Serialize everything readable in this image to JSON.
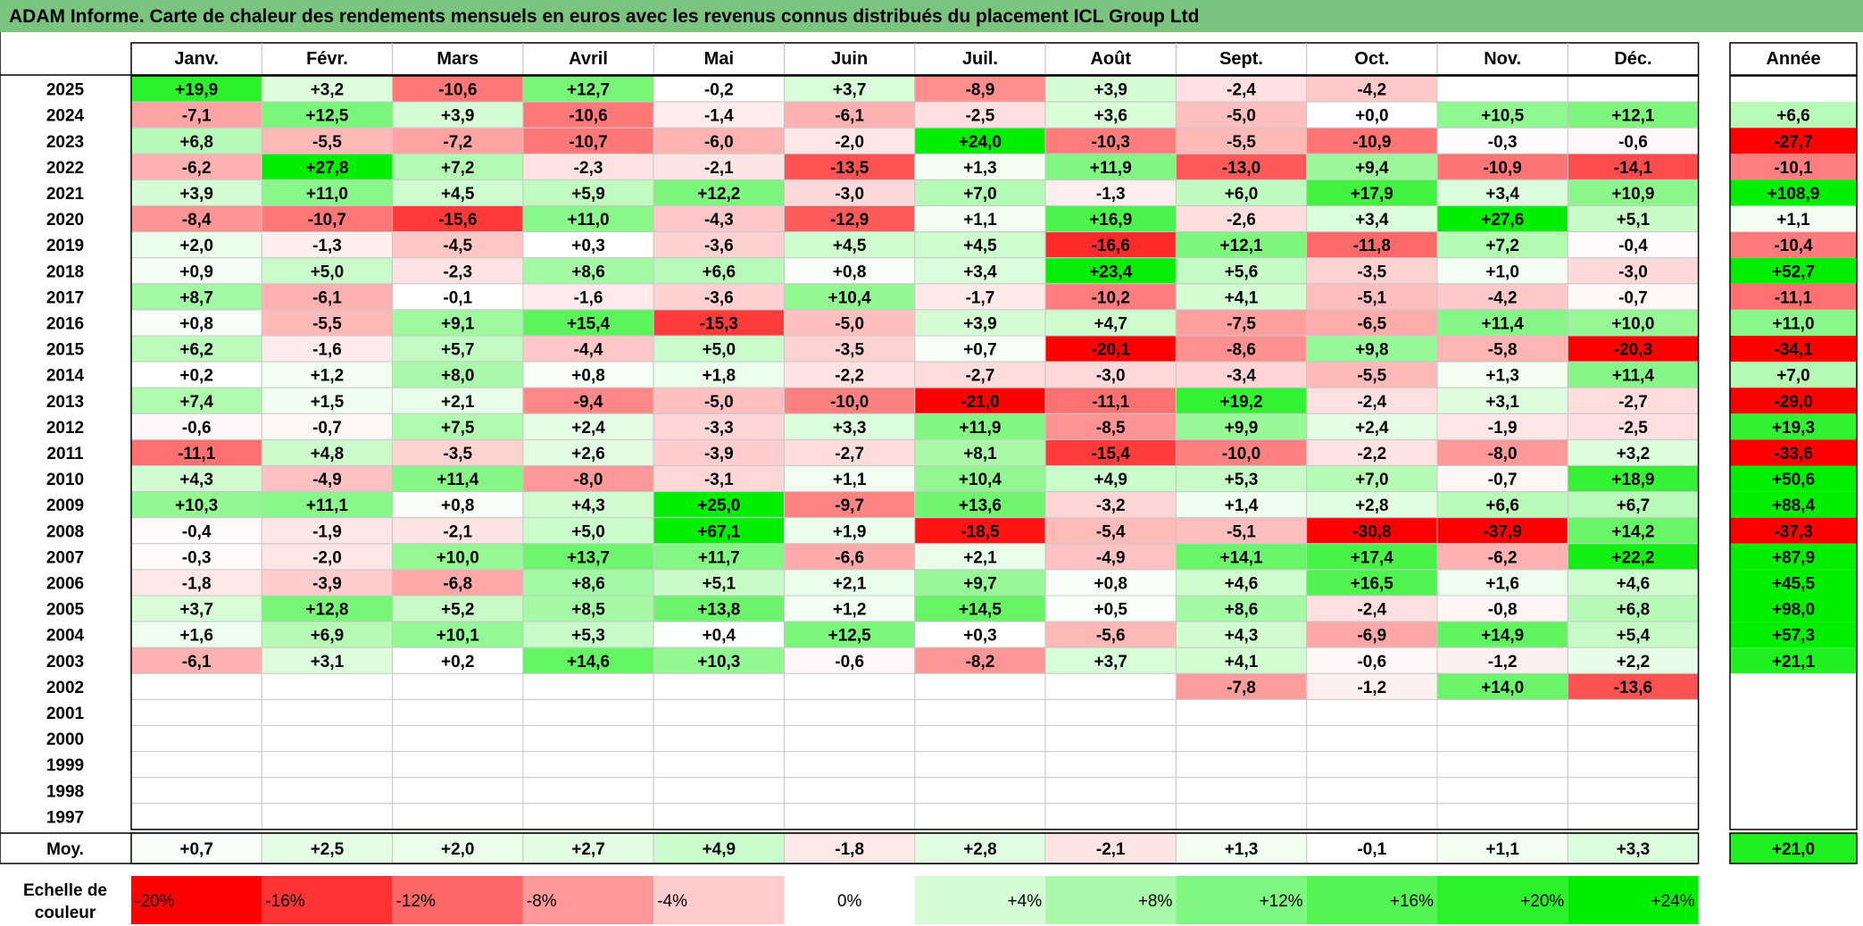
{
  "title": "ADAM Informe. Carte de chaleur des rendements mensuels en euros avec les revenus connus distribués du placement ICL Group Ltd",
  "chart_data": {
    "type": "heatmap",
    "title": "ADAM Informe. Carte de chaleur des rendements mensuels en euros avec les revenus connus distribués du placement ICL Group Ltd",
    "months": [
      "Janv.",
      "Févr.",
      "Mars",
      "Avril",
      "Mai",
      "Juin",
      "Juil.",
      "Août",
      "Sept.",
      "Oct.",
      "Nov.",
      "Déc."
    ],
    "year_header": "Année",
    "rows": [
      {
        "year": "2025",
        "values": [
          "+19,9",
          "+3,2",
          "-10,6",
          "+12,7",
          "-0,2",
          "+3,7",
          "-8,9",
          "+3,9",
          "-2,4",
          "-4,2",
          "",
          ""
        ],
        "annual": ""
      },
      {
        "year": "2024",
        "values": [
          "-7,1",
          "+12,5",
          "+3,9",
          "-10,6",
          "-1,4",
          "-6,1",
          "-2,5",
          "+3,6",
          "-5,0",
          "+0,0",
          "+10,5",
          "+12,1"
        ],
        "annual": "+6,6"
      },
      {
        "year": "2023",
        "values": [
          "+6,8",
          "-5,5",
          "-7,2",
          "-10,7",
          "-6,0",
          "-2,0",
          "+24,0",
          "-10,3",
          "-5,5",
          "-10,9",
          "-0,3",
          "-0,6"
        ],
        "annual": "-27,7"
      },
      {
        "year": "2022",
        "values": [
          "-6,2",
          "+27,8",
          "+7,2",
          "-2,3",
          "-2,1",
          "-13,5",
          "+1,3",
          "+11,9",
          "-13,0",
          "+9,4",
          "-10,9",
          "-14,1"
        ],
        "annual": "-10,1"
      },
      {
        "year": "2021",
        "values": [
          "+3,9",
          "+11,0",
          "+4,5",
          "+5,9",
          "+12,2",
          "-3,0",
          "+7,0",
          "-1,3",
          "+6,0",
          "+17,9",
          "+3,4",
          "+10,9"
        ],
        "annual": "+108,9"
      },
      {
        "year": "2020",
        "values": [
          "-8,4",
          "-10,7",
          "-15,6",
          "+11,0",
          "-4,3",
          "-12,9",
          "+1,1",
          "+16,9",
          "-2,6",
          "+3,4",
          "+27,6",
          "+5,1"
        ],
        "annual": "+1,1"
      },
      {
        "year": "2019",
        "values": [
          "+2,0",
          "-1,3",
          "-4,5",
          "+0,3",
          "-3,6",
          "+4,5",
          "+4,5",
          "-16,6",
          "+12,1",
          "-11,8",
          "+7,2",
          "-0,4"
        ],
        "annual": "-10,4"
      },
      {
        "year": "2018",
        "values": [
          "+0,9",
          "+5,0",
          "-2,3",
          "+8,6",
          "+6,6",
          "+0,8",
          "+3,4",
          "+23,4",
          "+5,6",
          "-3,5",
          "+1,0",
          "-3,0"
        ],
        "annual": "+52,7"
      },
      {
        "year": "2017",
        "values": [
          "+8,7",
          "-6,1",
          "-0,1",
          "-1,6",
          "-3,6",
          "+10,4",
          "-1,7",
          "-10,2",
          "+4,1",
          "-5,1",
          "-4,2",
          "-0,7"
        ],
        "annual": "-11,1"
      },
      {
        "year": "2016",
        "values": [
          "+0,8",
          "-5,5",
          "+9,1",
          "+15,4",
          "-15,3",
          "-5,0",
          "+3,9",
          "+4,7",
          "-7,5",
          "-6,5",
          "+11,4",
          "+10,0"
        ],
        "annual": "+11,0"
      },
      {
        "year": "2015",
        "values": [
          "+6,2",
          "-1,6",
          "+5,7",
          "-4,4",
          "+5,0",
          "-3,5",
          "+0,7",
          "-20,1",
          "-8,6",
          "+9,8",
          "-5,8",
          "-20,3"
        ],
        "annual": "-34,1"
      },
      {
        "year": "2014",
        "values": [
          "+0,2",
          "+1,2",
          "+8,0",
          "+0,8",
          "+1,8",
          "-2,2",
          "-2,7",
          "-3,0",
          "-3,4",
          "-5,5",
          "+1,3",
          "+11,4"
        ],
        "annual": "+7,0"
      },
      {
        "year": "2013",
        "values": [
          "+7,4",
          "+1,5",
          "+2,1",
          "-9,4",
          "-5,0",
          "-10,0",
          "-21,0",
          "-11,1",
          "+19,2",
          "-2,4",
          "+3,1",
          "-2,7"
        ],
        "annual": "-29,0"
      },
      {
        "year": "2012",
        "values": [
          "-0,6",
          "-0,7",
          "+7,5",
          "+2,4",
          "-3,3",
          "+3,3",
          "+11,9",
          "-8,5",
          "+9,9",
          "+2,4",
          "-1,9",
          "-2,5"
        ],
        "annual": "+19,3"
      },
      {
        "year": "2011",
        "values": [
          "-11,1",
          "+4,8",
          "-3,5",
          "+2,6",
          "-3,9",
          "-2,7",
          "+8,1",
          "-15,4",
          "-10,0",
          "-2,2",
          "-8,0",
          "+3,2"
        ],
        "annual": "-33,6"
      },
      {
        "year": "2010",
        "values": [
          "+4,3",
          "-4,9",
          "+11,4",
          "-8,0",
          "-3,1",
          "+1,1",
          "+10,4",
          "+4,9",
          "+5,3",
          "+7,0",
          "-0,7",
          "+18,9"
        ],
        "annual": "+50,6"
      },
      {
        "year": "2009",
        "values": [
          "+10,3",
          "+11,1",
          "+0,8",
          "+4,3",
          "+25,0",
          "-9,7",
          "+13,6",
          "-3,2",
          "+1,4",
          "+2,8",
          "+6,6",
          "+6,7"
        ],
        "annual": "+88,4"
      },
      {
        "year": "2008",
        "values": [
          "-0,4",
          "-1,9",
          "-2,1",
          "+5,0",
          "+67,1",
          "+1,9",
          "-18,5",
          "-5,4",
          "-5,1",
          "-30,8",
          "-37,9",
          "+14,2"
        ],
        "annual": "-37,3"
      },
      {
        "year": "2007",
        "values": [
          "-0,3",
          "-2,0",
          "+10,0",
          "+13,7",
          "+11,7",
          "-6,6",
          "+2,1",
          "-4,9",
          "+14,1",
          "+17,4",
          "-6,2",
          "+22,2"
        ],
        "annual": "+87,9"
      },
      {
        "year": "2006",
        "values": [
          "-1,8",
          "-3,9",
          "-6,8",
          "+8,6",
          "+5,1",
          "+2,1",
          "+9,7",
          "+0,8",
          "+4,6",
          "+16,5",
          "+1,6",
          "+4,6"
        ],
        "annual": "+45,5"
      },
      {
        "year": "2005",
        "values": [
          "+3,7",
          "+12,8",
          "+5,2",
          "+8,5",
          "+13,8",
          "+1,2",
          "+14,5",
          "+0,5",
          "+8,6",
          "-2,4",
          "-0,8",
          "+6,8"
        ],
        "annual": "+98,0"
      },
      {
        "year": "2004",
        "values": [
          "+1,6",
          "+6,9",
          "+10,1",
          "+5,3",
          "+0,4",
          "+12,5",
          "+0,3",
          "-5,6",
          "+4,3",
          "-6,9",
          "+14,9",
          "+5,4"
        ],
        "annual": "+57,3"
      },
      {
        "year": "2003",
        "values": [
          "-6,1",
          "+3,1",
          "+0,2",
          "+14,6",
          "+10,3",
          "-0,6",
          "-8,2",
          "+3,7",
          "+4,1",
          "-0,6",
          "-1,2",
          "+2,2"
        ],
        "annual": "+21,1"
      },
      {
        "year": "2002",
        "values": [
          "",
          "",
          "",
          "",
          "",
          "",
          "",
          "",
          "-7,8",
          "-1,2",
          "+14,0",
          "-13,6"
        ],
        "annual": ""
      },
      {
        "year": "2001",
        "values": [
          "",
          "",
          "",
          "",
          "",
          "",
          "",
          "",
          "",
          "",
          "",
          ""
        ],
        "annual": ""
      },
      {
        "year": "2000",
        "values": [
          "",
          "",
          "",
          "",
          "",
          "",
          "",
          "",
          "",
          "",
          "",
          ""
        ],
        "annual": ""
      },
      {
        "year": "1999",
        "values": [
          "",
          "",
          "",
          "",
          "",
          "",
          "",
          "",
          "",
          "",
          "",
          ""
        ],
        "annual": ""
      },
      {
        "year": "1998",
        "values": [
          "",
          "",
          "",
          "",
          "",
          "",
          "",
          "",
          "",
          "",
          "",
          ""
        ],
        "annual": ""
      },
      {
        "year": "1997",
        "values": [
          "",
          "",
          "",
          "",
          "",
          "",
          "",
          "",
          "",
          "",
          "",
          ""
        ],
        "annual": ""
      }
    ],
    "average": {
      "label": "Moy.",
      "values": [
        "+0,7",
        "+2,5",
        "+2,0",
        "+2,7",
        "+4,9",
        "-1,8",
        "+2,8",
        "-2,1",
        "+1,3",
        "-0,1",
        "+1,1",
        "+3,3"
      ],
      "annual": "+21,0"
    },
    "legend": {
      "title": [
        "Echelle de",
        "couleur"
      ],
      "stops": [
        {
          "label": "-20%",
          "value": -20
        },
        {
          "label": "-16%",
          "value": -16
        },
        {
          "label": "-12%",
          "value": -12
        },
        {
          "label": "-8%",
          "value": -8
        },
        {
          "label": "-4%",
          "value": -4
        },
        {
          "label": "0%",
          "value": 0
        },
        {
          "label": "+4%",
          "value": 4
        },
        {
          "label": "+8%",
          "value": 8
        },
        {
          "label": "+12%",
          "value": 12
        },
        {
          "label": "+16%",
          "value": 16
        },
        {
          "label": "+20%",
          "value": 20
        },
        {
          "label": "+24%",
          "value": 24
        }
      ]
    },
    "colors": {
      "negative": "#ff0000",
      "neutral": "#ffffff",
      "positive": "#00ee00",
      "title_bar": "#7bc47f"
    }
  }
}
